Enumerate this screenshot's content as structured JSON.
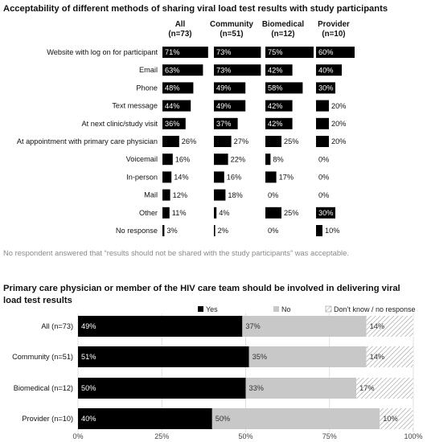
{
  "chart_data": [
    {
      "type": "bar",
      "title": "Acceptability of different methods of sharing viral load test results with study participants",
      "series": [
        {
          "name": "All",
          "n": "(n=73)",
          "values": [
            71,
            63,
            48,
            44,
            36,
            26,
            16,
            14,
            12,
            11,
            3
          ]
        },
        {
          "name": "Community",
          "n": "(n=51)",
          "values": [
            73,
            73,
            49,
            49,
            37,
            27,
            22,
            16,
            18,
            4,
            2
          ]
        },
        {
          "name": "Biomedical",
          "n": "(n=12)",
          "values": [
            75,
            42,
            58,
            42,
            42,
            25,
            8,
            17,
            0,
            25,
            0
          ]
        },
        {
          "name": "Provider",
          "n": "(n=10)",
          "values": [
            60,
            40,
            30,
            20,
            20,
            20,
            0,
            0,
            0,
            30,
            10
          ]
        }
      ],
      "categories": [
        "Website with log on for participant",
        "Email",
        "Phone",
        "Text message",
        "At next clinic/study visit",
        "At appointment with primary care physician",
        "Voicemail",
        "In-person",
        "Mail",
        "Other",
        "No response"
      ],
      "unit": "%",
      "note": "No respondent answered that “results should not be shared with the study participants” was acceptable."
    },
    {
      "type": "bar",
      "stacked": true,
      "orientation": "horizontal",
      "title": "Primary care physician or member of the HIV care team should be involved in delivering viral load test results",
      "categories": [
        "All (n=73)",
        "Community (n=51)",
        "Biomedical (n=12)",
        "Provider (n=10)"
      ],
      "series": [
        {
          "name": "Yes",
          "color": "#000000",
          "values": [
            49,
            51,
            50,
            40
          ]
        },
        {
          "name": "No",
          "color": "#c8c8c8",
          "values": [
            37,
            35,
            33,
            50
          ]
        },
        {
          "name": "Don’t know / no response",
          "color": "hatch",
          "values": [
            14,
            14,
            17,
            10
          ]
        }
      ],
      "xlim": [
        0,
        100
      ],
      "xticks": [
        "0%",
        "25%",
        "50%",
        "75%",
        "100%"
      ],
      "legend_position": "top"
    }
  ]
}
